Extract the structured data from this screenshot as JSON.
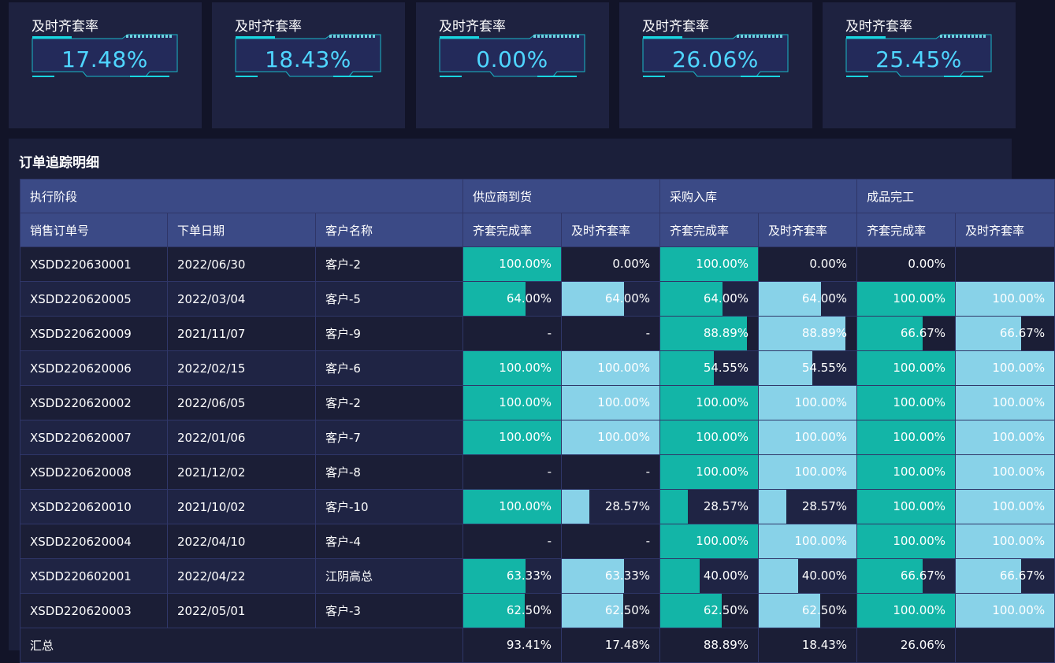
{
  "kpis": [
    {
      "title": "及时齐套率",
      "value": "17.48%"
    },
    {
      "title": "及时齐套率",
      "value": "18.43%"
    },
    {
      "title": "及时齐套率",
      "value": "0.00%"
    },
    {
      "title": "及时齐套率",
      "value": "26.06%"
    },
    {
      "title": "及时齐套率",
      "value": "25.45%"
    }
  ],
  "panel": {
    "title": "订单追踪明细"
  },
  "table": {
    "group_headers": [
      "执行阶段",
      "供应商到货",
      "采购入库",
      "成品完工"
    ],
    "columns": [
      "销售订单号",
      "下单日期",
      "客户名称",
      "齐套完成率",
      "及时齐套率",
      "齐套完成率",
      "及时齐套率",
      "齐套完成率",
      "及时齐套率"
    ],
    "rows": [
      {
        "order": "XSDD220630001",
        "date": "2022/06/30",
        "customer": "客户-2",
        "cells": [
          "100.00%",
          "0.00%",
          "100.00%",
          "0.00%",
          "0.00%",
          ""
        ]
      },
      {
        "order": "XSDD220620005",
        "date": "2022/03/04",
        "customer": "客户-5",
        "cells": [
          "64.00%",
          "64.00%",
          "64.00%",
          "64.00%",
          "100.00%",
          "100.00%"
        ]
      },
      {
        "order": "XSDD220620009",
        "date": "2021/11/07",
        "customer": "客户-9",
        "cells": [
          "-",
          "-",
          "88.89%",
          "88.89%",
          "66.67%",
          "66.67%"
        ]
      },
      {
        "order": "XSDD220620006",
        "date": "2022/02/15",
        "customer": "客户-6",
        "cells": [
          "100.00%",
          "100.00%",
          "54.55%",
          "54.55%",
          "100.00%",
          "100.00%"
        ]
      },
      {
        "order": "XSDD220620002",
        "date": "2022/06/05",
        "customer": "客户-2",
        "cells": [
          "100.00%",
          "100.00%",
          "100.00%",
          "100.00%",
          "100.00%",
          "100.00%"
        ]
      },
      {
        "order": "XSDD220620007",
        "date": "2022/01/06",
        "customer": "客户-7",
        "cells": [
          "100.00%",
          "100.00%",
          "100.00%",
          "100.00%",
          "100.00%",
          "100.00%"
        ]
      },
      {
        "order": "XSDD220620008",
        "date": "2021/12/02",
        "customer": "客户-8",
        "cells": [
          "-",
          "-",
          "100.00%",
          "100.00%",
          "100.00%",
          "100.00%"
        ]
      },
      {
        "order": "XSDD220620010",
        "date": "2021/10/02",
        "customer": "客户-10",
        "cells": [
          "100.00%",
          "28.57%",
          "28.57%",
          "28.57%",
          "100.00%",
          "100.00%"
        ]
      },
      {
        "order": "XSDD220620004",
        "date": "2022/04/10",
        "customer": "客户-4",
        "cells": [
          "-",
          "-",
          "100.00%",
          "100.00%",
          "100.00%",
          "100.00%"
        ]
      },
      {
        "order": "XSDD220602001",
        "date": "2022/04/22",
        "customer": "江阴高总",
        "cells": [
          "63.33%",
          "63.33%",
          "40.00%",
          "40.00%",
          "66.67%",
          "66.67%"
        ]
      },
      {
        "order": "XSDD220620003",
        "date": "2022/05/01",
        "customer": "客户-3",
        "cells": [
          "62.50%",
          "62.50%",
          "62.50%",
          "62.50%",
          "100.00%",
          "100.00%"
        ]
      }
    ],
    "summary": {
      "label": "汇总",
      "cells": [
        "93.41%",
        "17.48%",
        "88.89%",
        "18.43%",
        "26.06%",
        ""
      ]
    }
  },
  "colors": {
    "bar_completion": "#13b5a7",
    "bar_timely": "#88d2e8",
    "kpi_value": "#4fd6ff",
    "header_bg": "#3b4a86"
  }
}
